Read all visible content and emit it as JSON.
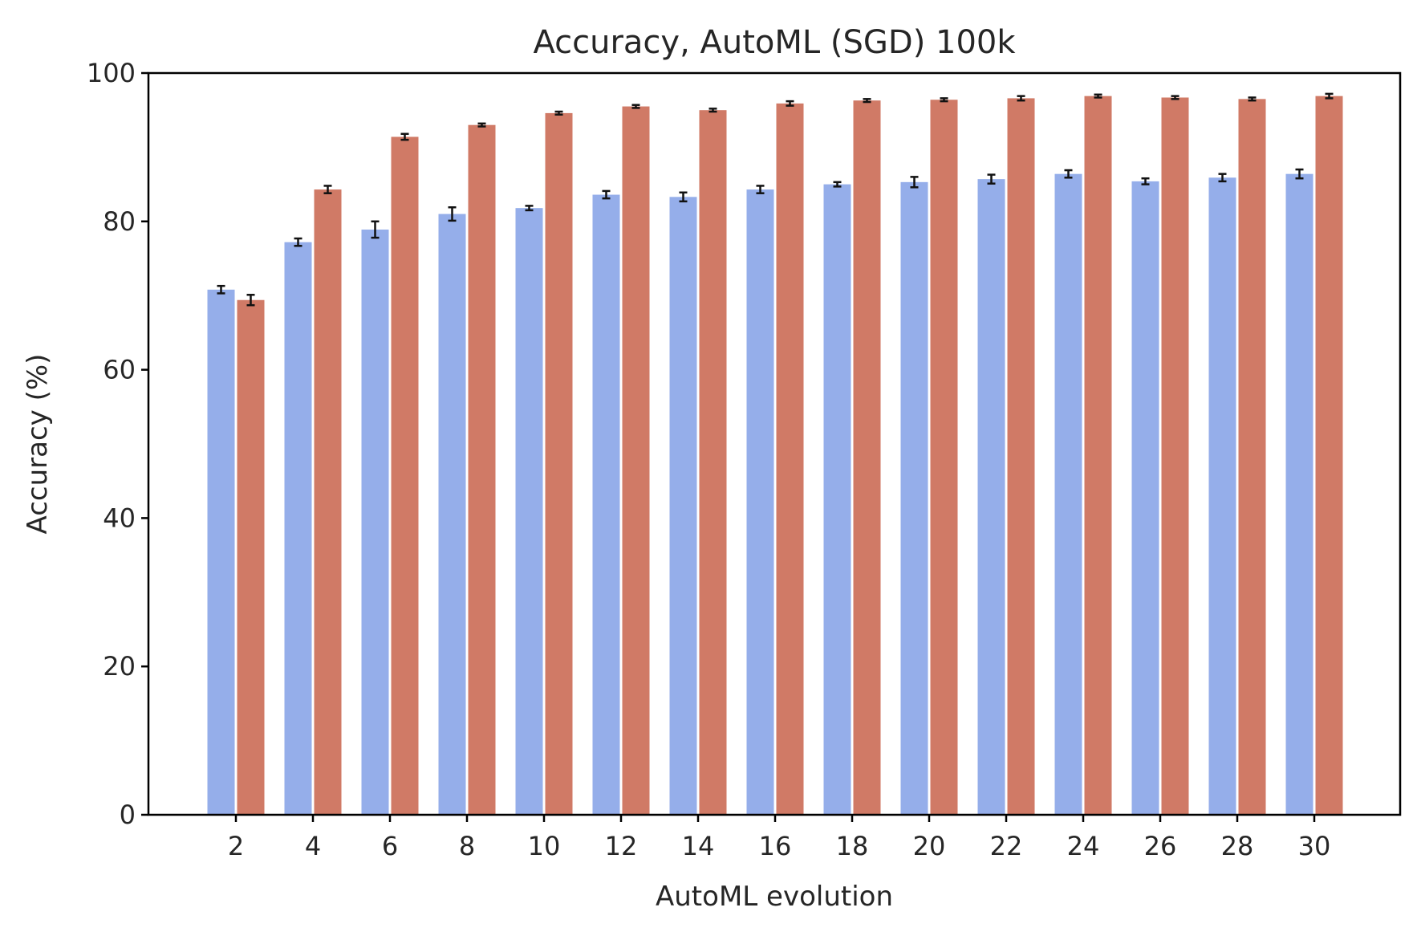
{
  "chart_data": {
    "type": "bar",
    "title": "Accuracy, AutoML (SGD) 100k",
    "xlabel": "AutoML evolution",
    "ylabel": "Accuracy (%)",
    "categories": [
      "2",
      "4",
      "6",
      "8",
      "10",
      "12",
      "14",
      "16",
      "18",
      "20",
      "22",
      "24",
      "26",
      "28",
      "30"
    ],
    "ylim": [
      0,
      100
    ],
    "yticks": [
      0,
      20,
      40,
      60,
      80,
      100
    ],
    "grid": false,
    "legend": "none",
    "series": [
      {
        "color": "#95aeea",
        "values": [
          70.8,
          77.2,
          78.9,
          81.0,
          81.8,
          83.6,
          83.3,
          84.3,
          85.0,
          85.3,
          85.7,
          86.4,
          85.4,
          85.9,
          86.4
        ],
        "errors": [
          0.5,
          0.5,
          1.1,
          0.9,
          0.3,
          0.5,
          0.6,
          0.5,
          0.3,
          0.7,
          0.6,
          0.5,
          0.4,
          0.5,
          0.6
        ]
      },
      {
        "color": "#d07a66",
        "values": [
          69.4,
          84.3,
          91.4,
          93.0,
          94.6,
          95.5,
          95.0,
          95.9,
          96.3,
          96.4,
          96.6,
          96.9,
          96.7,
          96.5,
          96.9
        ],
        "errors": [
          0.7,
          0.5,
          0.4,
          0.2,
          0.2,
          0.2,
          0.2,
          0.3,
          0.2,
          0.2,
          0.3,
          0.2,
          0.2,
          0.2,
          0.3
        ]
      }
    ]
  }
}
